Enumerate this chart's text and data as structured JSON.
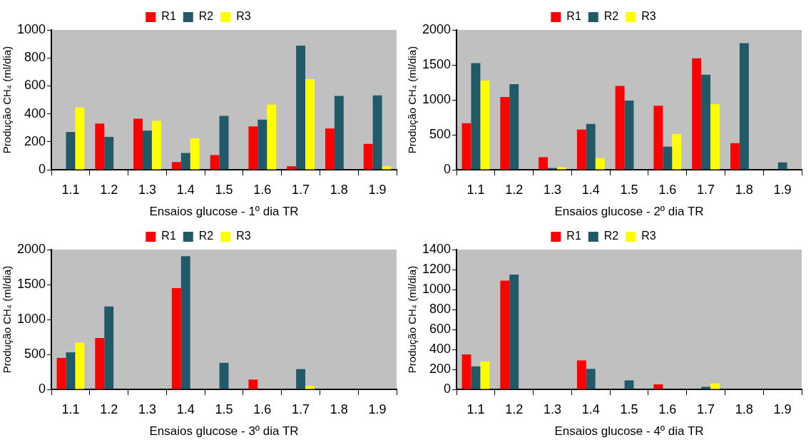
{
  "chart_data": [
    {
      "type": "bar",
      "xlabel": "Ensaios glucose - 1º dia TR",
      "ylabel": "Produção CH₄ (ml/dia)",
      "categories": [
        "1.1",
        "1.2",
        "1.3",
        "1.4",
        "1.5",
        "1.6",
        "1.7",
        "1.8",
        "1.9"
      ],
      "ylim": [
        0,
        1000
      ],
      "yticks": [
        0,
        200,
        400,
        600,
        800,
        1000
      ],
      "legend": "top",
      "series": [
        {
          "name": "R1",
          "color": "#ff0000",
          "values": [
            null,
            330,
            365,
            55,
            105,
            310,
            25,
            295,
            185
          ]
        },
        {
          "name": "R2",
          "color": "#215968",
          "values": [
            270,
            235,
            280,
            120,
            385,
            358,
            888,
            528,
            532
          ]
        },
        {
          "name": "R3",
          "color": "#ffff00",
          "values": [
            445,
            null,
            350,
            225,
            null,
            465,
            648,
            null,
            25
          ]
        }
      ]
    },
    {
      "type": "bar",
      "xlabel": "Ensaios glucose - 2º dia TR",
      "ylabel": "Produção CH₄ (ml/dia)",
      "categories": [
        "1.1",
        "1.2",
        "1.3",
        "1.4",
        "1.5",
        "1.6",
        "1.7",
        "1.8",
        "1.9"
      ],
      "ylim": [
        0,
        2000
      ],
      "yticks": [
        0,
        500,
        1000,
        1500,
        2000
      ],
      "legend": "top",
      "series": [
        {
          "name": "R1",
          "color": "#ff0000",
          "values": [
            665,
            1040,
            180,
            575,
            1200,
            915,
            1595,
            380,
            null
          ]
        },
        {
          "name": "R2",
          "color": "#215968",
          "values": [
            1525,
            1225,
            25,
            655,
            990,
            330,
            1360,
            1810,
            105
          ]
        },
        {
          "name": "R3",
          "color": "#ffff00",
          "values": [
            1275,
            null,
            35,
            165,
            null,
            510,
            940,
            null,
            null
          ]
        }
      ]
    },
    {
      "type": "bar",
      "xlabel": "Ensaios glucose - 3º dia TR",
      "ylabel": "Produção CH₄ (ml/dia)",
      "categories": [
        "1.1",
        "1.2",
        "1.3",
        "1.4",
        "1.5",
        "1.6",
        "1.7",
        "1.8",
        "1.9"
      ],
      "ylim": [
        0,
        2000
      ],
      "yticks": [
        0,
        500,
        1000,
        1500,
        2000
      ],
      "legend": "top",
      "series": [
        {
          "name": "R1",
          "color": "#ff0000",
          "values": [
            450,
            735,
            null,
            1450,
            null,
            140,
            null,
            null,
            null
          ]
        },
        {
          "name": "R2",
          "color": "#215968",
          "values": [
            530,
            1185,
            null,
            1905,
            380,
            null,
            290,
            null,
            null
          ]
        },
        {
          "name": "R3",
          "color": "#ffff00",
          "values": [
            670,
            null,
            null,
            null,
            null,
            null,
            50,
            null,
            null
          ]
        }
      ]
    },
    {
      "type": "bar",
      "xlabel": "Ensaios glucose - 4º dia TR",
      "ylabel": "Produção CH₄ (ml/dia)",
      "categories": [
        "1.1",
        "1.2",
        "1.3",
        "1.4",
        "1.5",
        "1.6",
        "1.7",
        "1.8",
        "1.9"
      ],
      "ylim": [
        0,
        1400
      ],
      "yticks": [
        0,
        200,
        400,
        600,
        800,
        1000,
        1200,
        1400
      ],
      "legend": "top",
      "series": [
        {
          "name": "R1",
          "color": "#ff0000",
          "values": [
            350,
            1090,
            null,
            290,
            null,
            50,
            null,
            null,
            null
          ]
        },
        {
          "name": "R2",
          "color": "#215968",
          "values": [
            230,
            1150,
            null,
            205,
            90,
            null,
            25,
            null,
            null
          ]
        },
        {
          "name": "R3",
          "color": "#ffff00",
          "values": [
            280,
            null,
            null,
            null,
            null,
            null,
            60,
            null,
            null
          ]
        }
      ]
    }
  ]
}
